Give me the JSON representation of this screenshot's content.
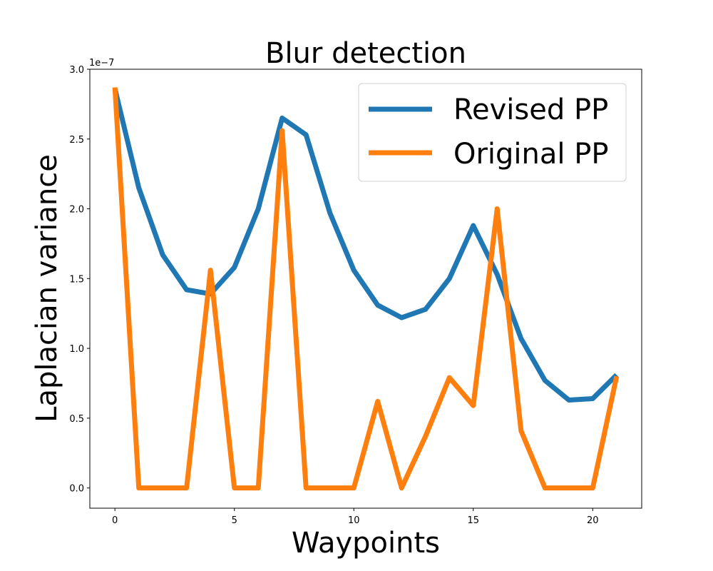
{
  "chart_data": {
    "type": "line",
    "title": "Blur detection",
    "xlabel": "Waypoints",
    "ylabel": "Laplacian variance",
    "y_offset_label": "1e−7",
    "xlim": [
      -1.05,
      22.05
    ],
    "ylim": [
      -0.145,
      3.0
    ],
    "xticks": [
      0,
      5,
      10,
      15,
      20
    ],
    "xtick_labels": [
      "0",
      "5",
      "10",
      "15",
      "20"
    ],
    "yticks": [
      0.0,
      0.5,
      1.0,
      1.5,
      2.0,
      2.5,
      3.0
    ],
    "ytick_labels": [
      "0.0",
      "0.5",
      "1.0",
      "1.5",
      "2.0",
      "2.5",
      "3.0"
    ],
    "grid": false,
    "legend_position": "top-right",
    "x": [
      0,
      1,
      2,
      3,
      4,
      5,
      6,
      7,
      8,
      9,
      10,
      11,
      12,
      13,
      14,
      15,
      16,
      17,
      18,
      19,
      20,
      21
    ],
    "series": [
      {
        "name": "Revised PP",
        "color": "#1f77b4",
        "values": [
          2.86,
          2.15,
          1.67,
          1.42,
          1.39,
          1.58,
          2.0,
          2.65,
          2.53,
          1.97,
          1.56,
          1.31,
          1.22,
          1.28,
          1.5,
          1.88,
          1.53,
          1.07,
          0.77,
          0.63,
          0.64,
          0.81
        ]
      },
      {
        "name": "Original PP",
        "color": "#ff7f0e",
        "values": [
          2.87,
          0.0,
          0.0,
          0.0,
          1.56,
          0.0,
          0.0,
          2.56,
          0.0,
          0.0,
          0.0,
          0.62,
          0.0,
          0.37,
          0.79,
          0.59,
          2.0,
          0.41,
          0.0,
          0.0,
          0.0,
          0.8
        ]
      }
    ]
  }
}
